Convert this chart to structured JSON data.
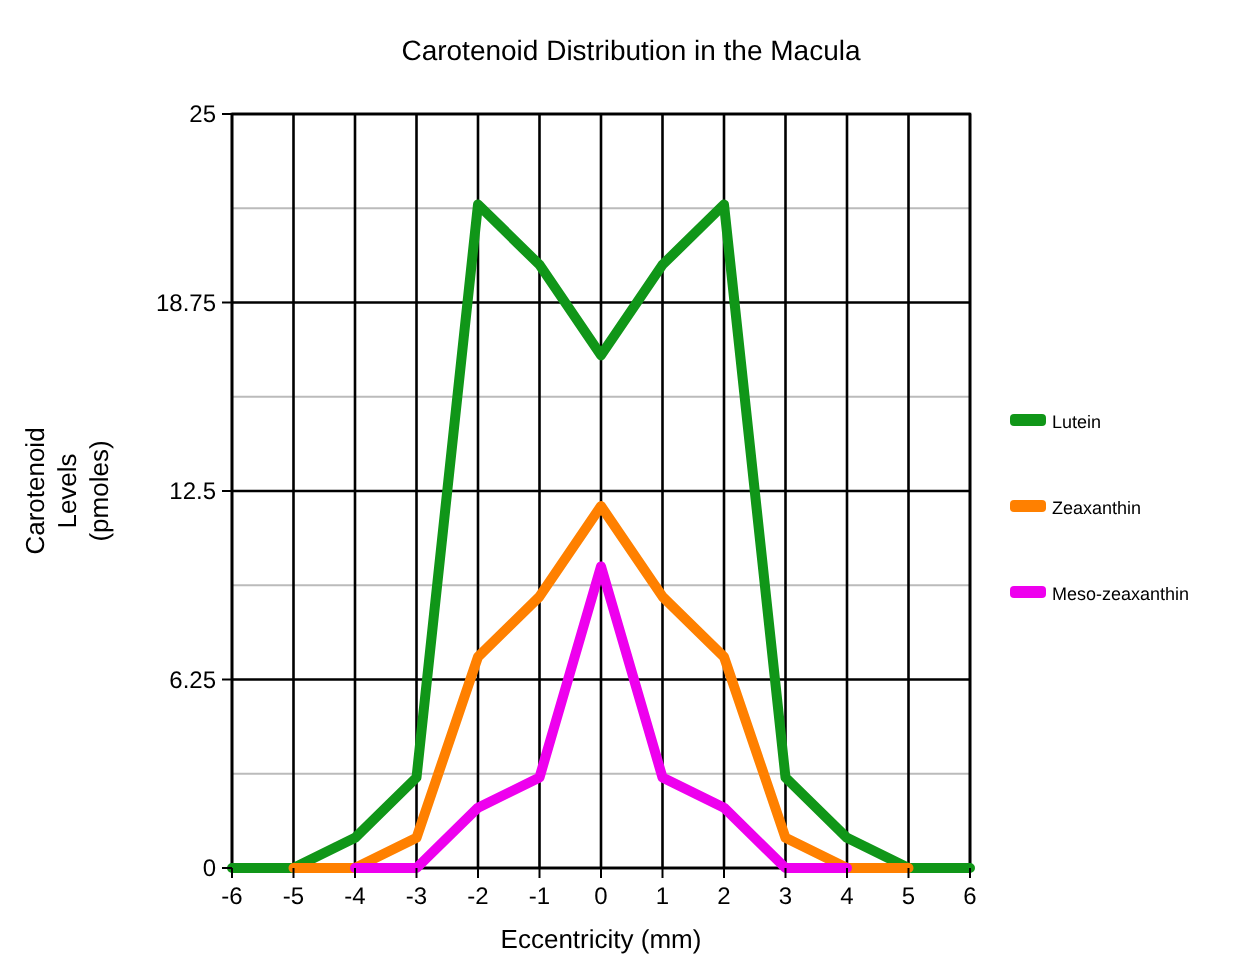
{
  "chart_data": {
    "type": "line",
    "title": "Carotenoid Distribution in the Macula",
    "xlabel": "Eccentricity (mm)",
    "ylabel": "Carotenoid Levels (pmoles)",
    "x": [
      -6,
      -5,
      -4,
      -3,
      -2,
      -1,
      0,
      1,
      2,
      3,
      4,
      5,
      6
    ],
    "series": [
      {
        "name": "Lutein",
        "color": "#109618",
        "values": [
          0,
          0,
          1,
          3,
          22,
          20,
          17,
          20,
          22,
          3,
          1,
          0,
          0
        ]
      },
      {
        "name": "Zeaxanthin",
        "color": "#ff8000",
        "values": [
          null,
          0,
          0,
          1,
          7,
          9,
          12,
          9,
          7,
          1,
          0,
          0,
          null
        ]
      },
      {
        "name": "Meso-zeaxanthin",
        "color": "#ee00ee",
        "values": [
          null,
          null,
          0,
          0,
          2,
          3,
          10,
          3,
          2,
          0,
          0,
          null,
          null
        ]
      }
    ],
    "xlim": [
      -6,
      6
    ],
    "xticks": [
      -6,
      -5,
      -4,
      -3,
      -2,
      -1,
      0,
      1,
      2,
      3,
      4,
      5,
      6
    ],
    "ylim": [
      0,
      25
    ],
    "yticks": [
      0,
      {
        "value": 3.125,
        "label": null
      },
      6.25,
      {
        "value": 9.375,
        "label": null
      },
      12.5,
      {
        "value": 15.625,
        "label": null
      },
      18.75,
      {
        "value": 21.875,
        "label": null
      },
      25
    ],
    "grid": true,
    "legend": "right",
    "marker": "none",
    "line_style": "solid"
  }
}
